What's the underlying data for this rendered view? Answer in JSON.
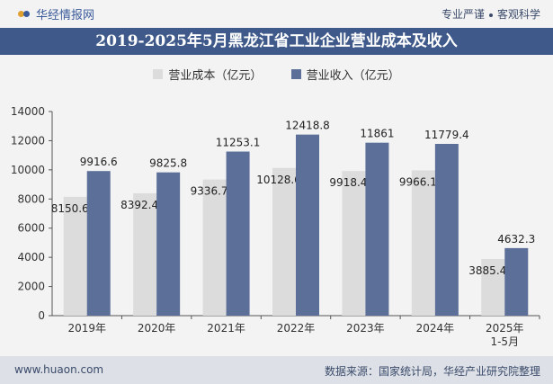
{
  "header": {
    "brand": "华经情报网",
    "tagline_1": "专业严谨",
    "tagline_2": "客观科学"
  },
  "footer": {
    "url": "www.huaon.com",
    "source": "数据来源：国家统计局，华经产业研究院整理"
  },
  "colors": {
    "cost": "#dcdcdc",
    "revenue": "#5b6f99",
    "title_bg": "#3f5a8a"
  },
  "chart_data": {
    "type": "bar",
    "title": "2019-2025年5月黑龙江省工业企业营业成本及收入",
    "categories": [
      "2019年",
      "2020年",
      "2021年",
      "2022年",
      "2023年",
      "2024年",
      "2025年\n1-5月"
    ],
    "series": [
      {
        "name": "营业成本（亿元）",
        "values": [
          8150.6,
          8392.4,
          9336.7,
          10128.6,
          9918.4,
          9966.1,
          3885.4
        ]
      },
      {
        "name": "营业收入（亿元）",
        "values": [
          9916.6,
          9825.8,
          11253.1,
          12418.8,
          11861,
          11779.4,
          4632.3
        ]
      }
    ],
    "ylim": [
      0,
      14000
    ],
    "yticks": [
      0,
      2000,
      4000,
      6000,
      8000,
      10000,
      12000,
      14000
    ],
    "grid": false,
    "legend": "top-center"
  }
}
